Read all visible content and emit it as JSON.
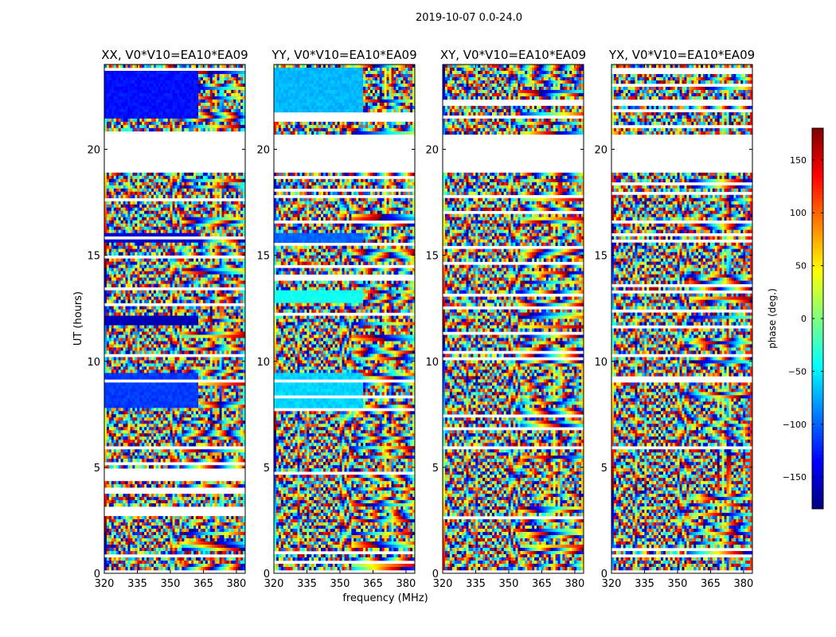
{
  "figure": {
    "suptitle": "2019-10-07 0.0-24.0",
    "xlabel": "frequency (MHz)",
    "ylabel": "UT (hours)"
  },
  "chart_data": {
    "type": "heatmap",
    "title": "2019-10-07 0.0-24.0",
    "xlabel": "frequency (MHz)",
    "ylabel": "UT (hours)",
    "xlim": [
      320,
      384
    ],
    "ylim": [
      0,
      24
    ],
    "xticks": [
      320,
      335,
      350,
      365,
      380
    ],
    "yticks": [
      0,
      5,
      10,
      15,
      20
    ],
    "panels": [
      {
        "title": "XX, V0*V10=EA10*EA09",
        "polarization": "XX",
        "coherent_bands": [
          [
            7.8,
            9.4,
            -115
          ],
          [
            21.5,
            23.8,
            -130
          ],
          [
            15.6,
            16.0,
            -150
          ],
          [
            11.7,
            12.2,
            -160
          ]
        ],
        "coherent_fmax": 363
      },
      {
        "title": "YY, V0*V10=EA10*EA09",
        "polarization": "YY",
        "coherent_bands": [
          [
            7.8,
            9.4,
            -60
          ],
          [
            21.5,
            23.8,
            -70
          ],
          [
            15.6,
            16.0,
            -100
          ],
          [
            12.8,
            13.3,
            -40
          ]
        ],
        "coherent_fmax": 361
      },
      {
        "title": "XY, V0*V10=EA10*EA09",
        "polarization": "XY",
        "coherent_bands": [],
        "coherent_fmax": 0
      },
      {
        "title": "YX, V0*V10=EA10*EA09",
        "polarization": "YX",
        "coherent_bands": [],
        "coherent_fmax": 0
      }
    ],
    "flagged_ut_ranges": [
      [
        18.9,
        20.7
      ],
      [
        0.0,
        0.2
      ]
    ],
    "colorbar": {
      "label": "phase (deg.)",
      "range": [
        -180,
        180
      ],
      "ticks": [
        -150,
        -100,
        -50,
        0,
        50,
        100,
        150
      ],
      "tick_labels": [
        "−150",
        "−100",
        "−50",
        "0",
        "50",
        "100",
        "150"
      ],
      "colormap": "jet"
    }
  }
}
